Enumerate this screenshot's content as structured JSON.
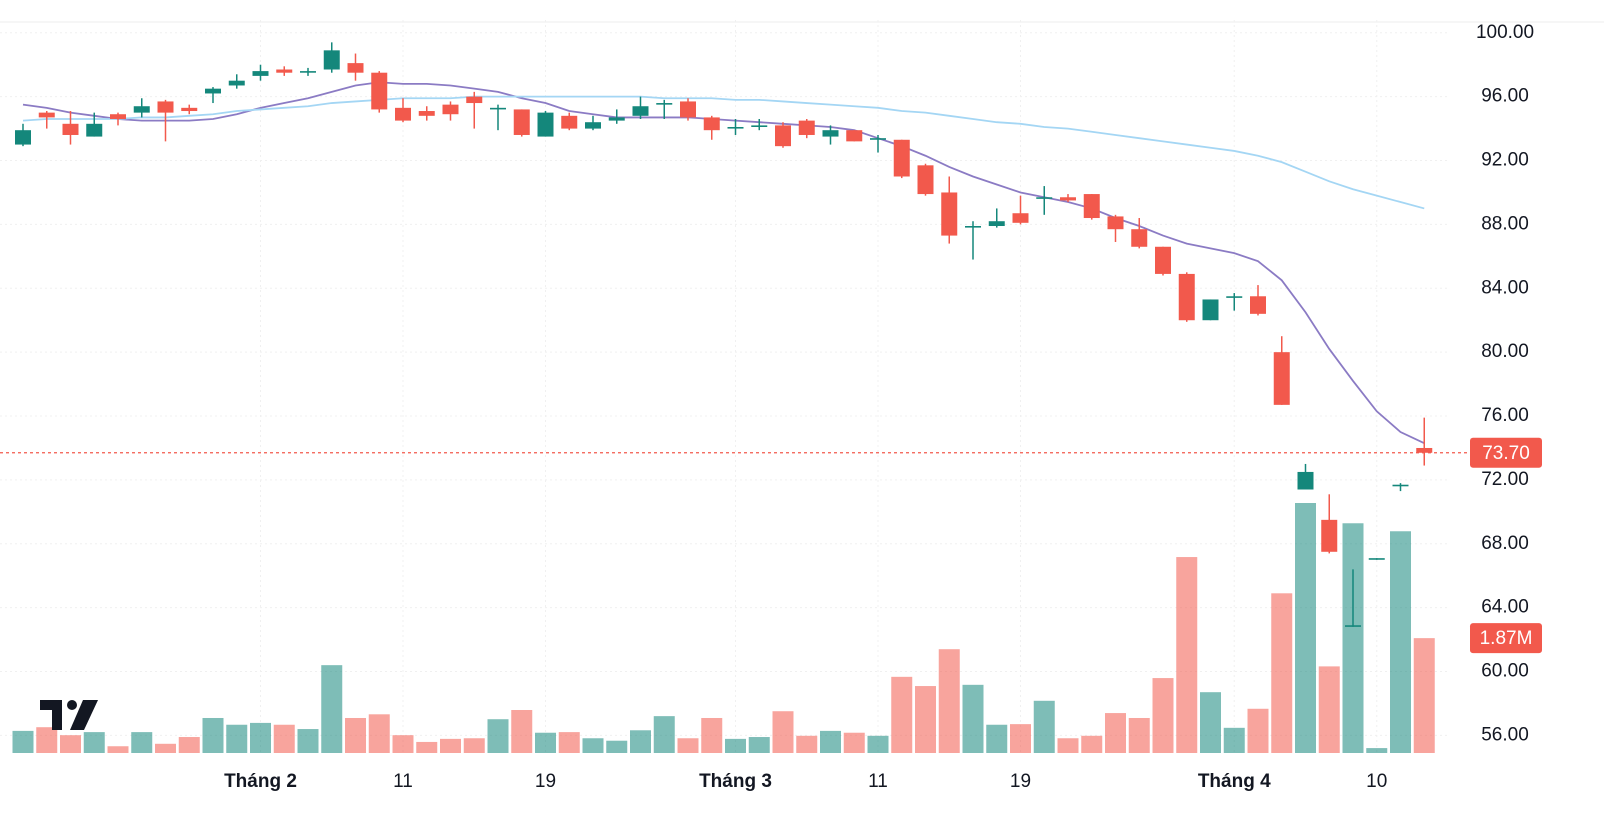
{
  "chart_data": {
    "type": "candlestick",
    "categories": [
      null,
      null,
      null,
      null,
      null,
      null,
      null,
      null,
      null,
      null,
      "Tháng 2",
      null,
      null,
      null,
      null,
      null,
      "11",
      null,
      null,
      null,
      null,
      null,
      "19",
      null,
      null,
      null,
      null,
      null,
      null,
      null,
      "Tháng 3",
      null,
      null,
      null,
      null,
      null,
      "11",
      null,
      null,
      null,
      null,
      null,
      "19",
      null,
      null,
      null,
      null,
      null,
      null,
      null,
      null,
      "Tháng 4",
      null,
      null,
      null,
      null,
      null,
      "10",
      null,
      null
    ],
    "open": [
      93.0,
      95.0,
      94.3,
      93.5,
      94.9,
      95.0,
      95.7,
      95.3,
      96.2,
      96.7,
      97.3,
      97.7,
      97.5,
      97.7,
      98.1,
      97.5,
      95.3,
      95.1,
      95.5,
      96.0,
      95.2,
      95.2,
      93.5,
      94.8,
      94.0,
      94.5,
      94.8,
      95.5,
      95.7,
      94.7,
      94.0,
      94.1,
      94.2,
      94.5,
      93.5,
      93.9,
      93.3,
      93.3,
      91.7,
      90.0,
      87.8,
      87.9,
      88.7,
      89.6,
      89.7,
      89.9,
      88.5,
      87.7,
      86.6,
      84.9,
      82.0,
      83.4,
      83.5,
      80.0,
      71.4,
      69.5,
      62.8,
      67.0,
      71.6,
      74.0
    ],
    "high": [
      94.3,
      95.1,
      95.1,
      95.0,
      95.0,
      95.9,
      95.8,
      95.5,
      96.6,
      97.4,
      98.0,
      97.9,
      97.8,
      99.4,
      98.7,
      97.6,
      95.9,
      95.4,
      95.7,
      96.3,
      95.5,
      95.2,
      95.1,
      95.0,
      94.8,
      95.2,
      96.0,
      95.8,
      95.9,
      94.8,
      94.6,
      94.6,
      94.4,
      94.6,
      94.2,
      93.9,
      93.6,
      93.3,
      91.8,
      91.0,
      88.2,
      89.0,
      89.8,
      90.4,
      89.9,
      89.9,
      88.6,
      88.4,
      86.6,
      85.0,
      83.3,
      83.7,
      84.2,
      81.0,
      73.0,
      71.1,
      66.4,
      67.1,
      71.8,
      75.9
    ],
    "low": [
      92.9,
      94.0,
      93.0,
      93.5,
      94.2,
      94.7,
      93.2,
      94.9,
      95.6,
      96.5,
      97.0,
      97.3,
      97.3,
      97.5,
      97.0,
      95.0,
      94.4,
      94.5,
      94.5,
      94.0,
      93.9,
      93.5,
      93.5,
      93.9,
      93.9,
      94.3,
      94.6,
      94.6,
      94.5,
      93.3,
      93.6,
      93.9,
      92.8,
      93.4,
      93.0,
      93.2,
      92.5,
      90.9,
      89.8,
      86.8,
      85.8,
      87.8,
      88.0,
      88.6,
      89.4,
      88.3,
      86.9,
      86.5,
      84.8,
      81.9,
      82.0,
      82.6,
      82.3,
      76.7,
      71.4,
      67.4,
      62.8,
      67.0,
      71.3,
      72.9
    ],
    "close": [
      93.9,
      94.7,
      93.6,
      94.3,
      94.6,
      95.4,
      95.0,
      95.1,
      96.5,
      97.0,
      97.6,
      97.5,
      97.6,
      98.9,
      97.5,
      95.2,
      94.5,
      94.8,
      94.9,
      95.6,
      95.3,
      93.6,
      95.0,
      94.0,
      94.4,
      94.7,
      95.4,
      95.6,
      94.7,
      93.9,
      94.1,
      94.2,
      92.9,
      93.6,
      93.9,
      93.2,
      93.4,
      91.0,
      89.9,
      87.3,
      87.9,
      88.2,
      88.1,
      89.7,
      89.5,
      88.4,
      87.7,
      86.6,
      84.9,
      82.0,
      83.3,
      83.5,
      82.4,
      76.7,
      72.5,
      67.5,
      62.9,
      67.1,
      71.7,
      73.7
    ],
    "volume": [
      360000,
      420000,
      290000,
      340000,
      110000,
      340000,
      150000,
      260000,
      570000,
      460000,
      490000,
      460000,
      390000,
      1430000,
      570000,
      630000,
      290000,
      180000,
      230000,
      240000,
      550000,
      700000,
      330000,
      340000,
      240000,
      200000,
      370000,
      600000,
      240000,
      570000,
      230000,
      260000,
      680000,
      280000,
      360000,
      330000,
      280000,
      1240000,
      1090000,
      1690000,
      1110000,
      460000,
      470000,
      850000,
      240000,
      280000,
      650000,
      570000,
      1220000,
      3190000,
      990000,
      410000,
      720000,
      2600000,
      4070000,
      1410000,
      3740000,
      80000,
      3610000,
      1870000
    ],
    "ma_lines": [
      {
        "color": "#8b7bc4",
        "values": [
          95.5,
          95.3,
          95.0,
          94.8,
          94.6,
          94.5,
          94.5,
          94.5,
          94.6,
          94.9,
          95.3,
          95.6,
          95.9,
          96.3,
          96.7,
          96.9,
          96.8,
          96.8,
          96.7,
          96.5,
          96.3,
          95.9,
          95.6,
          95.1,
          94.9,
          94.7,
          94.7,
          94.7,
          94.7,
          94.6,
          94.5,
          94.4,
          94.3,
          94.2,
          94.1,
          93.9,
          93.4,
          92.9,
          92.3,
          91.6,
          91.0,
          90.5,
          90.0,
          89.7,
          89.4,
          89.0,
          88.4,
          87.9,
          87.3,
          86.8,
          86.5,
          86.2,
          85.7,
          84.5,
          82.5,
          80.2,
          78.2,
          76.3,
          75.0,
          74.3
        ]
      },
      {
        "color": "#a4d6f4",
        "values": [
          94.5,
          94.6,
          94.6,
          94.6,
          94.6,
          94.7,
          94.7,
          94.8,
          94.9,
          95.1,
          95.2,
          95.3,
          95.4,
          95.6,
          95.7,
          95.8,
          95.9,
          95.9,
          95.9,
          96.0,
          96.0,
          96.0,
          96.0,
          96.0,
          96.0,
          96.0,
          96.0,
          95.9,
          95.9,
          95.9,
          95.8,
          95.8,
          95.7,
          95.6,
          95.5,
          95.4,
          95.3,
          95.1,
          95.0,
          94.8,
          94.6,
          94.4,
          94.3,
          94.1,
          94.0,
          93.8,
          93.6,
          93.4,
          93.2,
          93.0,
          92.8,
          92.6,
          92.3,
          91.9,
          91.3,
          90.7,
          90.2,
          89.8,
          89.4,
          89.0
        ]
      }
    ],
    "up_color": "#14877b",
    "down_color": "#f2594c",
    "ylim": [
      54.9,
      100.8
    ],
    "yticks": [
      {
        "value": 100,
        "label": "100.00"
      },
      {
        "value": 96,
        "label": "96.00"
      },
      {
        "value": 92,
        "label": "92.00"
      },
      {
        "value": 88,
        "label": "88.00"
      },
      {
        "value": 84,
        "label": "84.00"
      },
      {
        "value": 80,
        "label": "80.00"
      },
      {
        "value": 76,
        "label": "76.00"
      },
      {
        "value": 72,
        "label": "72.00"
      },
      {
        "value": 68,
        "label": "68.00"
      },
      {
        "value": 64,
        "label": "64.00"
      },
      {
        "value": 60,
        "label": "60.00"
      },
      {
        "value": 56,
        "label": "56.00"
      }
    ],
    "grid": true,
    "price_marker": {
      "value": 73.7,
      "label": "73.70"
    },
    "volume_marker": {
      "value": 1870000,
      "label": "1.87M"
    }
  }
}
